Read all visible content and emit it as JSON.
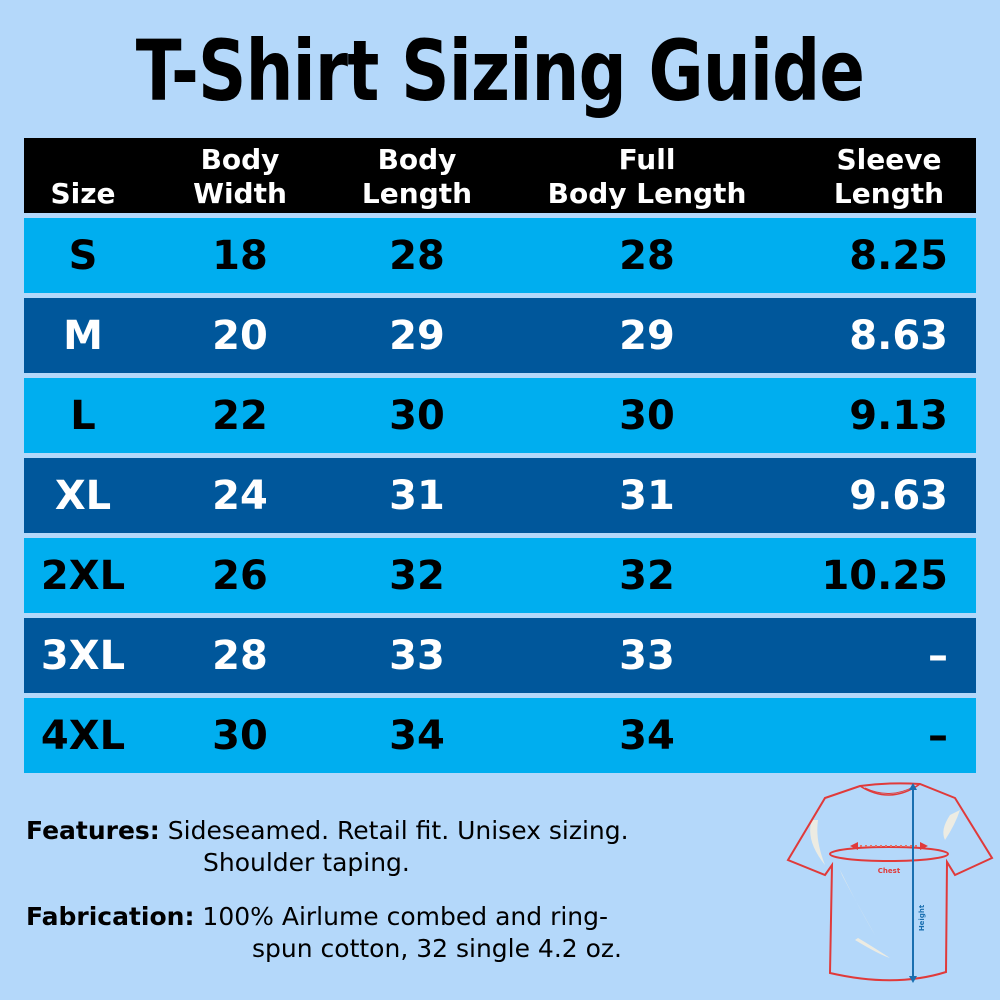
{
  "title": "T-Shirt Sizing Guide",
  "table": {
    "headers": [
      [
        "",
        "Size"
      ],
      [
        "Body",
        "Width"
      ],
      [
        "Body",
        "Length"
      ],
      [
        "Full",
        "Body Length"
      ],
      [
        "Sleeve",
        "Length"
      ]
    ],
    "rows": [
      [
        "S",
        "18",
        "28",
        "28",
        "8.25"
      ],
      [
        "M",
        "20",
        "29",
        "29",
        "8.63"
      ],
      [
        "L",
        "22",
        "30",
        "30",
        "9.13"
      ],
      [
        "XL",
        "24",
        "31",
        "31",
        "9.63"
      ],
      [
        "2XL",
        "26",
        "32",
        "32",
        "10.25"
      ],
      [
        "3XL",
        "28",
        "33",
        "33",
        "–"
      ],
      [
        "4XL",
        "30",
        "34",
        "34",
        "–"
      ]
    ],
    "colors": {
      "header": "#000000",
      "light_row": "#00aeef",
      "dark_row": "#00579b",
      "background": "#b4d8fa"
    }
  },
  "features": {
    "label": "Features:",
    "line1": "Sideseamed. Retail fit. Unisex sizing.",
    "line2": "Shoulder taping."
  },
  "fabrication": {
    "label": "Fabrication:",
    "line1": "100% Airlume combed and ring-",
    "line2": "spun cotton, 32 single 4.2 oz."
  },
  "diagram": {
    "chest_label": "Chest",
    "height_label": "Height"
  }
}
